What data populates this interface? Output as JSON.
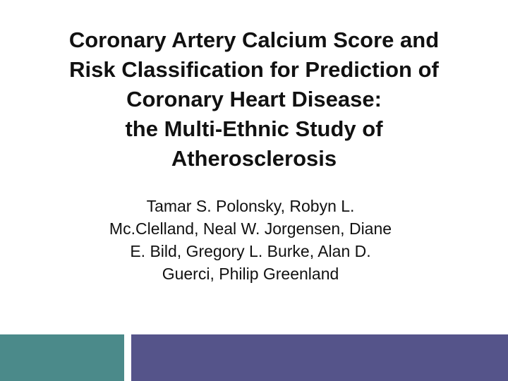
{
  "slide": {
    "title_lines": [
      "Coronary Artery Calcium Score and",
      "Risk Classification for Prediction of",
      "Coronary Heart Disease:",
      "the Multi-Ethnic Study of",
      "Atherosclerosis"
    ],
    "author_lines": [
      "Tamar S. Polonsky, Robyn L.",
      "Mc.Clelland, Neal W. Jorgensen, Diane",
      "E. Bild, Gregory L. Burke, Alan D.",
      "Guerci, Philip Greenland"
    ]
  },
  "colors": {
    "background": "#ffffff",
    "accent_teal": "#4b8a8a",
    "accent_indigo": "#55548a"
  }
}
